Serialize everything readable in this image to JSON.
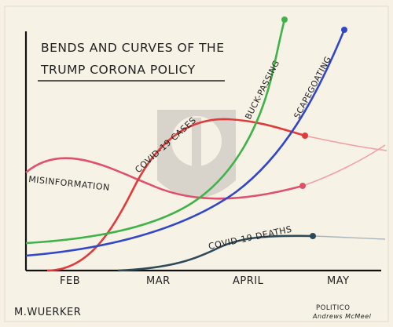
{
  "cartoon": {
    "title_line1": "BENDS AND CURVES OF THE",
    "title_line2": "TRUMP CORONA POLICY",
    "months": [
      "FEB",
      "MAR",
      "APRIL",
      "MAY"
    ],
    "curves": [
      {
        "name": "MISINFORMATION",
        "color": "#e0506a"
      },
      {
        "name": "COVID-19 CASES",
        "color": "#e03a3a"
      },
      {
        "name": "BUCK-PASSING",
        "color": "#3fb34a"
      },
      {
        "name": "SCAPEGOATING",
        "color": "#3247c8"
      },
      {
        "name": "COVID-19 DEATHS",
        "color": "#2d4a5a"
      }
    ],
    "signature": "M.WUERKER",
    "credit_line1": "POLITICO",
    "credit_line2": "Andrews McMeel"
  }
}
